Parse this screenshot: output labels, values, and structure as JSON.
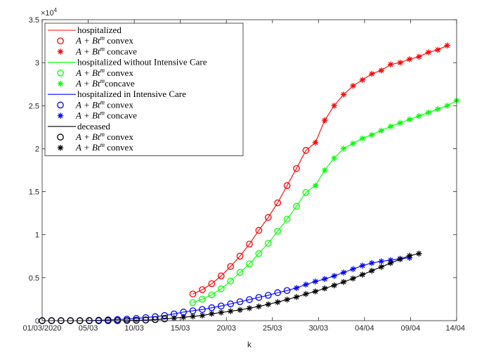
{
  "chart_data": {
    "type": "line",
    "xlabel": "k",
    "ylabel": "",
    "x_ticks": [
      "01/03/2020",
      "05/03",
      "10/03",
      "15/03",
      "20/03",
      "25/03",
      "30/03",
      "04/04",
      "09/04",
      "14/04"
    ],
    "x_range_days": [
      0,
      44
    ],
    "ylim": [
      0,
      35000
    ],
    "y_ticks": [
      "0",
      "0.5",
      "1",
      "1.5",
      "2",
      "2.5",
      "3",
      "3.5"
    ],
    "y_exponent": "×10",
    "y_exponent_power": "4",
    "legend_position": "top-left",
    "series": [
      {
        "name": "hospitalized",
        "label_math": "",
        "kind": "line",
        "color": "#ff0000",
        "x": [
          16,
          17,
          18,
          19,
          20,
          21,
          22,
          23,
          24,
          25,
          26,
          27,
          28,
          29,
          30,
          31,
          32,
          33,
          34,
          35,
          36,
          37,
          38,
          39,
          40,
          41,
          42,
          43
        ],
        "y": [
          3100,
          3600,
          4300,
          5200,
          6300,
          7500,
          8900,
          10500,
          12000,
          13700,
          15700,
          17700,
          19800,
          20700,
          23300,
          25000,
          26300,
          27300,
          28000,
          28700,
          29100,
          29800,
          30000,
          30400,
          30700,
          31200,
          31500,
          32000
        ]
      },
      {
        "name": "",
        "label_prefix": "A + Bt",
        "label_sup": "m",
        "label_suffix": " convex",
        "kind": "circle",
        "color": "#ff0000",
        "x": [
          16,
          17,
          18,
          19,
          20,
          21,
          22,
          23,
          24,
          25,
          26,
          27,
          28
        ],
        "y": [
          3100,
          3600,
          4300,
          5200,
          6300,
          7500,
          8900,
          10500,
          12000,
          13700,
          15700,
          17700,
          19800
        ]
      },
      {
        "name": "",
        "label_prefix": "A + Bt",
        "label_sup": "m",
        "label_suffix": " concave",
        "kind": "star",
        "color": "#ff0000",
        "x": [
          29,
          30,
          31,
          32,
          33,
          34,
          35,
          36,
          37,
          38,
          39,
          40,
          41,
          42,
          43
        ],
        "y": [
          20700,
          23300,
          25000,
          26300,
          27300,
          28000,
          28700,
          29100,
          29800,
          30000,
          30400,
          30700,
          31200,
          31500,
          32000
        ]
      },
      {
        "name": "hospitalized without Intensive Care",
        "kind": "line",
        "color": "#00ff00",
        "x": [
          16,
          17,
          18,
          19,
          20,
          21,
          22,
          23,
          24,
          25,
          26,
          27,
          28,
          29,
          30,
          31,
          32,
          33,
          34,
          35,
          36,
          37,
          38,
          39,
          40,
          41,
          42,
          43,
          44
        ],
        "y": [
          2100,
          2500,
          3000,
          3700,
          4600,
          5600,
          6600,
          7800,
          9000,
          10400,
          11800,
          13300,
          14900,
          15700,
          17500,
          18900,
          20000,
          20600,
          21200,
          21600,
          22100,
          22600,
          23000,
          23400,
          23800,
          24200,
          24600,
          25000,
          25600
        ]
      },
      {
        "name": "",
        "label_prefix": "A + Bt",
        "label_sup": "m",
        "label_suffix": " convex",
        "kind": "circle",
        "color": "#00ff00",
        "x": [
          16,
          17,
          18,
          19,
          20,
          21,
          22,
          23,
          24,
          25,
          26,
          27,
          28
        ],
        "y": [
          2100,
          2500,
          3000,
          3700,
          4600,
          5600,
          6600,
          7800,
          9000,
          10400,
          11800,
          13300,
          14900
        ]
      },
      {
        "name": "",
        "label_prefix": "A + Bt",
        "label_sup": "m",
        "label_suffix": "concave",
        "kind": "star",
        "color": "#00ff00",
        "x": [
          29,
          30,
          31,
          32,
          33,
          34,
          35,
          36,
          37,
          38,
          39,
          40,
          41,
          42,
          43,
          44
        ],
        "y": [
          15700,
          17500,
          18900,
          20000,
          20600,
          21200,
          21600,
          22100,
          22600,
          23000,
          23400,
          23800,
          24200,
          24600,
          25000,
          25600
        ]
      },
      {
        "name": "hospitalized in Intensive Care",
        "kind": "line",
        "color": "#0000ff",
        "x": [
          0,
          1,
          2,
          3,
          4,
          5,
          6,
          7,
          8,
          9,
          10,
          11,
          12,
          13,
          14,
          15,
          16,
          17,
          18,
          19,
          20,
          21,
          22,
          23,
          24,
          25,
          26,
          27,
          28,
          29,
          30,
          31,
          32,
          33,
          34,
          35,
          36,
          37,
          38,
          39
        ],
        "y": [
          0,
          0,
          0,
          0,
          0,
          20,
          50,
          90,
          130,
          180,
          260,
          350,
          460,
          600,
          780,
          1000,
          1150,
          1300,
          1500,
          1700,
          1950,
          2200,
          2450,
          2700,
          2950,
          3250,
          3500,
          3800,
          4200,
          4550,
          4850,
          5200,
          5600,
          6000,
          6400,
          6700,
          6900,
          7050,
          7200,
          7300
        ]
      },
      {
        "name": "",
        "label_prefix": "A + Bt",
        "label_sup": "m",
        "label_suffix": " convex",
        "kind": "circle",
        "color": "#0000ff",
        "x": [
          0,
          1,
          2,
          3,
          4,
          5,
          6,
          7,
          8,
          9,
          10,
          11,
          12,
          13,
          14,
          15,
          16,
          17,
          18,
          19,
          20,
          21,
          22,
          23,
          24,
          25,
          26
        ],
        "y": [
          0,
          0,
          0,
          0,
          0,
          20,
          50,
          90,
          130,
          180,
          260,
          350,
          460,
          600,
          780,
          1000,
          1150,
          1300,
          1500,
          1700,
          1950,
          2200,
          2450,
          2700,
          2950,
          3250,
          3500
        ]
      },
      {
        "name": "",
        "label_prefix": "A + Bt",
        "label_sup": "m",
        "label_suffix": " concave",
        "kind": "star",
        "color": "#0000ff",
        "x": [
          27,
          28,
          29,
          30,
          31,
          32,
          33,
          34,
          35,
          36,
          37,
          38,
          39
        ],
        "y": [
          3800,
          4200,
          4550,
          4850,
          5200,
          5600,
          6000,
          6400,
          6700,
          6900,
          7050,
          7200,
          7300
        ]
      },
      {
        "name": "deceased",
        "kind": "line",
        "color": "#000000",
        "x": [
          0,
          1,
          2,
          3,
          4,
          5,
          6,
          7,
          8,
          9,
          10,
          11,
          12,
          13,
          14,
          15,
          16,
          17,
          18,
          19,
          20,
          21,
          22,
          23,
          24,
          25,
          26,
          27,
          28,
          29,
          30,
          31,
          32,
          33,
          34,
          35,
          36,
          37,
          38,
          39,
          40
        ],
        "y": [
          0,
          0,
          0,
          0,
          0,
          0,
          0,
          0,
          0,
          20,
          50,
          80,
          120,
          200,
          300,
          400,
          500,
          600,
          800,
          950,
          1100,
          1250,
          1450,
          1650,
          1900,
          2150,
          2450,
          2750,
          3100,
          3400,
          3750,
          4100,
          4500,
          4900,
          5350,
          5800,
          6250,
          6700,
          7150,
          7550,
          7800
        ]
      },
      {
        "name": "",
        "label_prefix": "A + Bt",
        "label_sup": "m",
        "label_suffix": " convex",
        "kind": "circle",
        "color": "#000000",
        "x": [
          0,
          1,
          2,
          3,
          4,
          5,
          6,
          7,
          8,
          9,
          10,
          11,
          12,
          13
        ],
        "y": [
          0,
          0,
          0,
          0,
          0,
          0,
          0,
          0,
          0,
          20,
          50,
          80,
          120,
          200
        ]
      },
      {
        "name": "",
        "label_prefix": "A + Bt",
        "label_sup": "m",
        "label_suffix": " convex",
        "kind": "star",
        "color": "#000000",
        "x": [
          14,
          15,
          16,
          17,
          18,
          19,
          20,
          21,
          22,
          23,
          24,
          25,
          26,
          27,
          28,
          29,
          30,
          31,
          32,
          33,
          34,
          35,
          36,
          37,
          38,
          39,
          40
        ],
        "y": [
          300,
          400,
          500,
          600,
          800,
          950,
          1100,
          1250,
          1450,
          1650,
          1900,
          2150,
          2450,
          2750,
          3100,
          3400,
          3750,
          4100,
          4500,
          4900,
          5350,
          5800,
          6250,
          6700,
          7150,
          7550,
          7800
        ]
      }
    ]
  }
}
